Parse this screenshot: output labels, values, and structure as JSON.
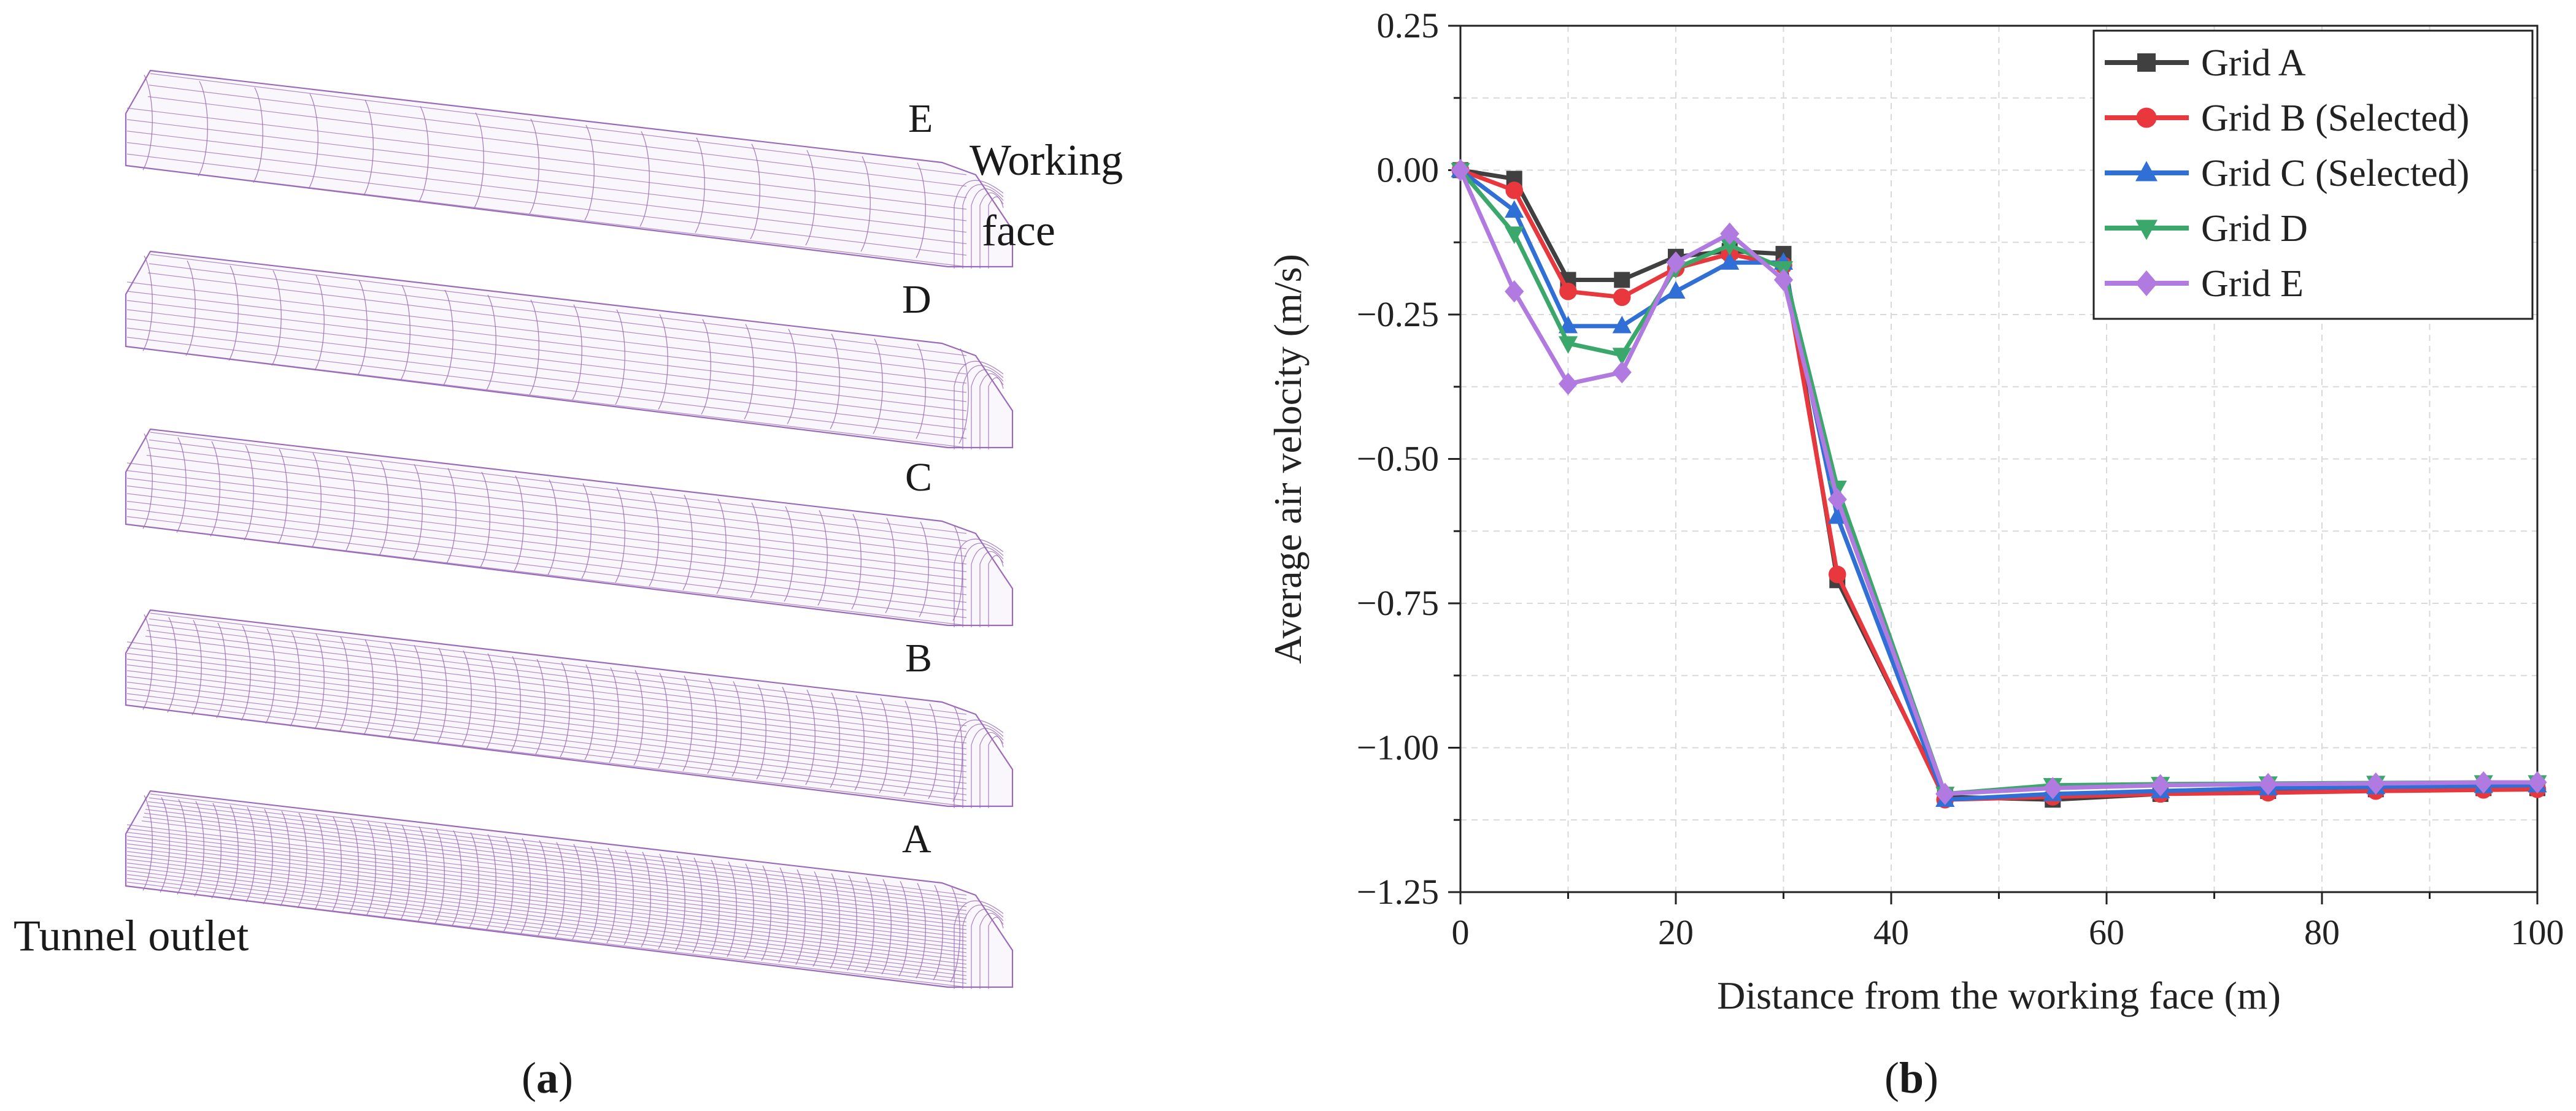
{
  "panel_a": {
    "caption": "a",
    "grids": [
      {
        "letter": "E",
        "spacing": 90,
        "rows": 8,
        "density": "coarse"
      },
      {
        "letter": "D",
        "spacing": 70,
        "rows": 10,
        "density": "medium"
      },
      {
        "letter": "C",
        "spacing": 55,
        "rows": 12,
        "density": "medium"
      },
      {
        "letter": "B",
        "spacing": 40,
        "rows": 16,
        "density": "fine"
      },
      {
        "letter": "A",
        "spacing": 28,
        "rows": 24,
        "density": "finest"
      }
    ],
    "working_face_label_1": "Working",
    "working_face_label_2": "face",
    "tunnel_outlet_label": "Tunnel outlet",
    "mesh_color": "#9a6bb6"
  },
  "panel_b": {
    "caption": "b"
  },
  "chart_data": {
    "type": "line",
    "xlabel": "Distance from the working face (m)",
    "ylabel": "Average air velocity (m/s)",
    "xlim": [
      0,
      100
    ],
    "ylim": [
      -1.25,
      0.25
    ],
    "xticks": [
      0,
      20,
      40,
      60,
      80,
      100
    ],
    "yticks": [
      0.25,
      0.0,
      -0.25,
      -0.5,
      -0.75,
      -1.0,
      -1.25
    ],
    "ytick_labels": [
      "0.25",
      "0.00",
      "−0.25",
      "−0.50",
      "−0.75",
      "−1.00",
      "−1.25"
    ],
    "grid": true,
    "legend_position": "top-right",
    "x": [
      0,
      5,
      10,
      15,
      20,
      25,
      30,
      35,
      45,
      55,
      65,
      75,
      85,
      95,
      100
    ],
    "series": [
      {
        "name": "Grid A",
        "color": "#404040",
        "marker": "square",
        "values": [
          0.0,
          -0.015,
          -0.19,
          -0.19,
          -0.15,
          -0.14,
          -0.145,
          -0.71,
          -1.085,
          -1.09,
          -1.08,
          -1.075,
          -1.072,
          -1.07,
          -1.07
        ]
      },
      {
        "name": "Grid B (Selected)",
        "color": "#e8383d",
        "marker": "circle",
        "values": [
          0.0,
          -0.035,
          -0.21,
          -0.22,
          -0.17,
          -0.145,
          -0.165,
          -0.7,
          -1.09,
          -1.085,
          -1.08,
          -1.078,
          -1.075,
          -1.073,
          -1.072
        ]
      },
      {
        "name": "Grid C (Selected)",
        "color": "#2f6fd6",
        "marker": "triangle-up",
        "values": [
          0.0,
          -0.07,
          -0.27,
          -0.27,
          -0.21,
          -0.16,
          -0.16,
          -0.6,
          -1.09,
          -1.08,
          -1.075,
          -1.07,
          -1.068,
          -1.066,
          -1.065
        ]
      },
      {
        "name": "Grid D",
        "color": "#3aa86a",
        "marker": "triangle-down",
        "values": [
          0.0,
          -0.11,
          -0.3,
          -0.32,
          -0.17,
          -0.13,
          -0.17,
          -0.55,
          -1.08,
          -1.065,
          -1.063,
          -1.062,
          -1.061,
          -1.06,
          -1.06
        ]
      },
      {
        "name": "Grid E",
        "color": "#b07ae0",
        "marker": "diamond",
        "values": [
          0.0,
          -0.21,
          -0.37,
          -0.35,
          -0.16,
          -0.11,
          -0.19,
          -0.57,
          -1.08,
          -1.07,
          -1.065,
          -1.063,
          -1.062,
          -1.06,
          -1.06
        ]
      }
    ]
  }
}
